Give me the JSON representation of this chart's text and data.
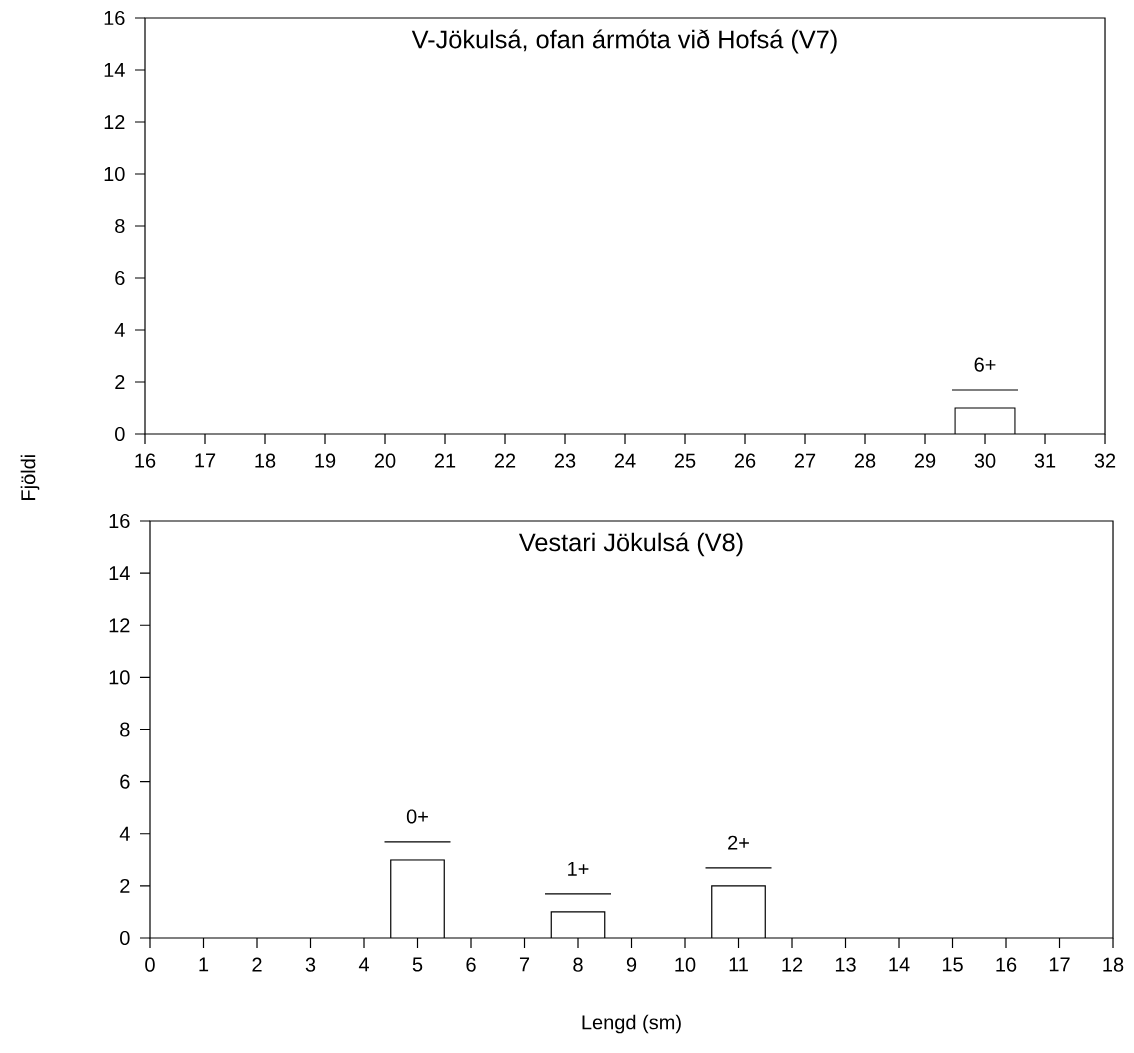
{
  "chart_data": [
    {
      "type": "bar",
      "title": "V-Jökulsá, ofan ármóta við Hofsá (V7)",
      "ylabel": "Fjöldi",
      "x": [
        30
      ],
      "values": [
        1
      ],
      "color": "#ffffff",
      "xlim": [
        16,
        32
      ],
      "xticks": [
        16,
        17,
        18,
        19,
        20,
        21,
        22,
        23,
        24,
        25,
        26,
        27,
        28,
        29,
        30,
        31,
        32
      ],
      "ylim": [
        0,
        16
      ],
      "yticks": [
        0,
        2,
        4,
        6,
        8,
        10,
        12,
        14,
        16
      ],
      "annotations": [
        "6+"
      ]
    },
    {
      "type": "bar",
      "title": "Vestari Jökulsá (V8)",
      "xlabel": "Lengd (sm)",
      "x": [
        5,
        8,
        11
      ],
      "values": [
        3,
        1,
        2
      ],
      "color": "#ffffff",
      "xlim": [
        0,
        18
      ],
      "xticks": [
        0,
        1,
        2,
        3,
        4,
        5,
        6,
        7,
        8,
        9,
        10,
        11,
        12,
        13,
        14,
        15,
        16,
        17,
        18
      ],
      "ylim": [
        0,
        16
      ],
      "yticks": [
        0,
        2,
        4,
        6,
        8,
        10,
        12,
        14,
        16
      ],
      "annotations": [
        "0+",
        "1+",
        "2+"
      ]
    }
  ]
}
